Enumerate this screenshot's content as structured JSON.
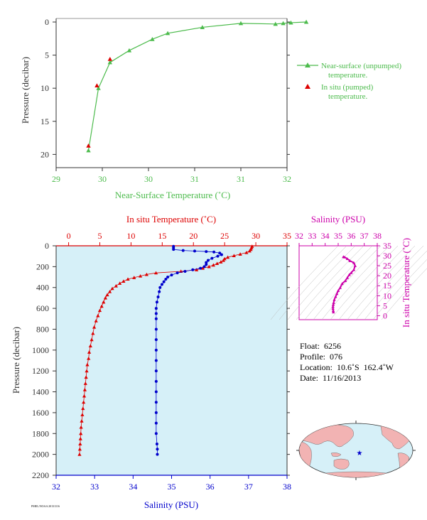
{
  "colors": {
    "green": "#4cbb4c",
    "red": "#dd0000",
    "blue": "#0000cc",
    "magenta": "#cc00aa",
    "panel_bg": "#d6f0f8",
    "axis_dark": "#333333"
  },
  "chart_data": [
    {
      "type": "line",
      "xlabel": "Near-Surface Temperature (˚C)",
      "ylabel": "Pressure (decibar)",
      "xticks": [
        "29",
        "30",
        "30",
        "31",
        "31",
        "32"
      ],
      "xlim": [
        29,
        32
      ],
      "yticks": [
        "0",
        "5",
        "10",
        "15",
        "20"
      ],
      "ylim": [
        0,
        22
      ],
      "y_inverted": true,
      "series": [
        {
          "name": "Near-surface (unpumped) temperature.",
          "color": "#4cbb4c",
          "marker": "triangle",
          "points": [
            [
              32.25,
              0.0
            ],
            [
              32.05,
              0.1
            ],
            [
              31.95,
              0.2
            ],
            [
              31.85,
              0.3
            ],
            [
              31.4,
              0.2
            ],
            [
              30.9,
              0.8
            ],
            [
              30.45,
              1.7
            ],
            [
              30.25,
              2.6
            ],
            [
              29.95,
              4.3
            ],
            [
              29.7,
              6.1
            ],
            [
              29.55,
              10.0
            ],
            [
              29.42,
              19.4
            ]
          ]
        },
        {
          "name": "In situ (pumped) temperature.",
          "color": "#dd0000",
          "marker": "triangle",
          "points": [
            [
              29.7,
              5.6
            ],
            [
              29.53,
              9.6
            ],
            [
              29.42,
              18.7
            ]
          ]
        }
      ]
    },
    {
      "type": "line",
      "top_axis_label": "In situ Temperature (˚C)",
      "top_ticks": [
        "0",
        "5",
        "10",
        "15",
        "20",
        "25",
        "30",
        "35"
      ],
      "top_xlim": [
        -2,
        35
      ],
      "bottom_axis_label": "Salinity (PSU)",
      "bottom_ticks": [
        "32",
        "33",
        "34",
        "35",
        "36",
        "37",
        "38"
      ],
      "bottom_xlim": [
        32,
        38
      ],
      "ylabel": "Pressure (decibar)",
      "yticks": [
        "0",
        "200",
        "400",
        "600",
        "800",
        "1000",
        "1200",
        "1400",
        "1600",
        "1800",
        "2000",
        "2200"
      ],
      "ylim": [
        0,
        2200
      ],
      "y_inverted": true,
      "series": [
        {
          "name": "In situ Temperature",
          "color": "#dd0000",
          "marker": "triangle",
          "points": [
            [
              29.4,
              5
            ],
            [
              29.3,
              20
            ],
            [
              29.2,
              35
            ],
            [
              29.0,
              50
            ],
            [
              28.5,
              65
            ],
            [
              27.5,
              80
            ],
            [
              26.5,
              95
            ],
            [
              25.5,
              110
            ],
            [
              25.0,
              125
            ],
            [
              24.8,
              140
            ],
            [
              24.4,
              155
            ],
            [
              23.8,
              170
            ],
            [
              23.2,
              185
            ],
            [
              22.5,
              200
            ],
            [
              21.5,
              215
            ],
            [
              20.5,
              230
            ],
            [
              18.0,
              245
            ],
            [
              14.0,
              260
            ],
            [
              12.5,
              275
            ],
            [
              11.5,
              290
            ],
            [
              10.5,
              305
            ],
            [
              9.5,
              320
            ],
            [
              8.8,
              340
            ],
            [
              8.2,
              360
            ],
            [
              7.6,
              385
            ],
            [
              7.0,
              410
            ],
            [
              6.6,
              440
            ],
            [
              6.2,
              470
            ],
            [
              5.9,
              500
            ],
            [
              5.6,
              540
            ],
            [
              5.3,
              580
            ],
            [
              5.0,
              620
            ],
            [
              4.7,
              670
            ],
            [
              4.4,
              720
            ],
            [
              4.1,
              780
            ],
            [
              3.9,
              840
            ],
            [
              3.7,
              900
            ],
            [
              3.5,
              960
            ],
            [
              3.3,
              1020
            ],
            [
              3.2,
              1080
            ],
            [
              3.0,
              1140
            ],
            [
              2.9,
              1200
            ],
            [
              2.8,
              1260
            ],
            [
              2.7,
              1320
            ],
            [
              2.6,
              1380
            ],
            [
              2.5,
              1440
            ],
            [
              2.4,
              1500
            ],
            [
              2.3,
              1560
            ],
            [
              2.2,
              1620
            ],
            [
              2.1,
              1680
            ],
            [
              2.0,
              1740
            ],
            [
              1.95,
              1800
            ],
            [
              1.9,
              1850
            ],
            [
              1.85,
              1900
            ],
            [
              1.8,
              1950
            ],
            [
              1.75,
              2000
            ]
          ]
        },
        {
          "name": "Salinity",
          "color": "#0000cc",
          "marker": "circle",
          "points": [
            [
              35.05,
              5
            ],
            [
              35.05,
              20
            ],
            [
              35.05,
              35
            ],
            [
              35.3,
              45
            ],
            [
              35.6,
              50
            ],
            [
              35.9,
              55
            ],
            [
              36.1,
              60
            ],
            [
              36.25,
              70
            ],
            [
              36.3,
              85
            ],
            [
              36.2,
              100
            ],
            [
              36.05,
              120
            ],
            [
              35.95,
              140
            ],
            [
              35.9,
              160
            ],
            [
              35.9,
              180
            ],
            [
              35.85,
              200
            ],
            [
              35.75,
              215
            ],
            [
              35.55,
              230
            ],
            [
              35.35,
              245
            ],
            [
              35.15,
              260
            ],
            [
              35.0,
              280
            ],
            [
              34.9,
              300
            ],
            [
              34.85,
              320
            ],
            [
              34.8,
              345
            ],
            [
              34.75,
              370
            ],
            [
              34.7,
              400
            ],
            [
              34.68,
              440
            ],
            [
              34.65,
              490
            ],
            [
              34.62,
              540
            ],
            [
              34.6,
              600
            ],
            [
              34.6,
              650
            ],
            [
              34.6,
              700
            ],
            [
              34.6,
              800
            ],
            [
              34.6,
              900
            ],
            [
              34.6,
              1000
            ],
            [
              34.6,
              1100
            ],
            [
              34.6,
              1200
            ],
            [
              34.6,
              1300
            ],
            [
              34.6,
              1400
            ],
            [
              34.6,
              1500
            ],
            [
              34.6,
              1600
            ],
            [
              34.6,
              1700
            ],
            [
              34.6,
              1800
            ],
            [
              34.62,
              1900
            ],
            [
              34.63,
              1950
            ],
            [
              34.63,
              2000
            ]
          ]
        }
      ]
    },
    {
      "type": "scatter",
      "xlabel": "Salinity (PSU)",
      "ylabel": "In situ Temperature (˚C)",
      "xticks": [
        "32",
        "33",
        "34",
        "35",
        "36",
        "37",
        "38"
      ],
      "xlim": [
        32,
        38
      ],
      "yticks": [
        "0",
        "5",
        "10",
        "15",
        "20",
        "25",
        "30",
        "35"
      ],
      "ylim": [
        -2,
        35
      ],
      "color": "#cc00aa",
      "points": [
        [
          35.4,
          29.5
        ],
        [
          35.5,
          29.3
        ],
        [
          35.7,
          28.5
        ],
        [
          35.9,
          27.5
        ],
        [
          36.2,
          26.5
        ],
        [
          36.3,
          25
        ],
        [
          36.2,
          23
        ],
        [
          36.0,
          21.5
        ],
        [
          35.85,
          20.5
        ],
        [
          35.7,
          19
        ],
        [
          35.55,
          17.5
        ],
        [
          35.3,
          16
        ],
        [
          35.15,
          14
        ],
        [
          35.0,
          12.5
        ],
        [
          34.9,
          11
        ],
        [
          34.8,
          9.5
        ],
        [
          34.7,
          8
        ],
        [
          34.65,
          6.5
        ],
        [
          34.62,
          5.5
        ],
        [
          34.6,
          4.5
        ],
        [
          34.6,
          3.5
        ],
        [
          34.62,
          2.5
        ],
        [
          34.63,
          1.8
        ]
      ]
    }
  ],
  "info": {
    "float": "Float:  6256",
    "profile": "Profile:  076",
    "location": "Location:  10.6˚S  162.4˚W",
    "date": "Date:  11/16/2013"
  },
  "footer_tag": "PMEL/NOAA 20131116",
  "map": {
    "marker_icon": "star-icon"
  }
}
